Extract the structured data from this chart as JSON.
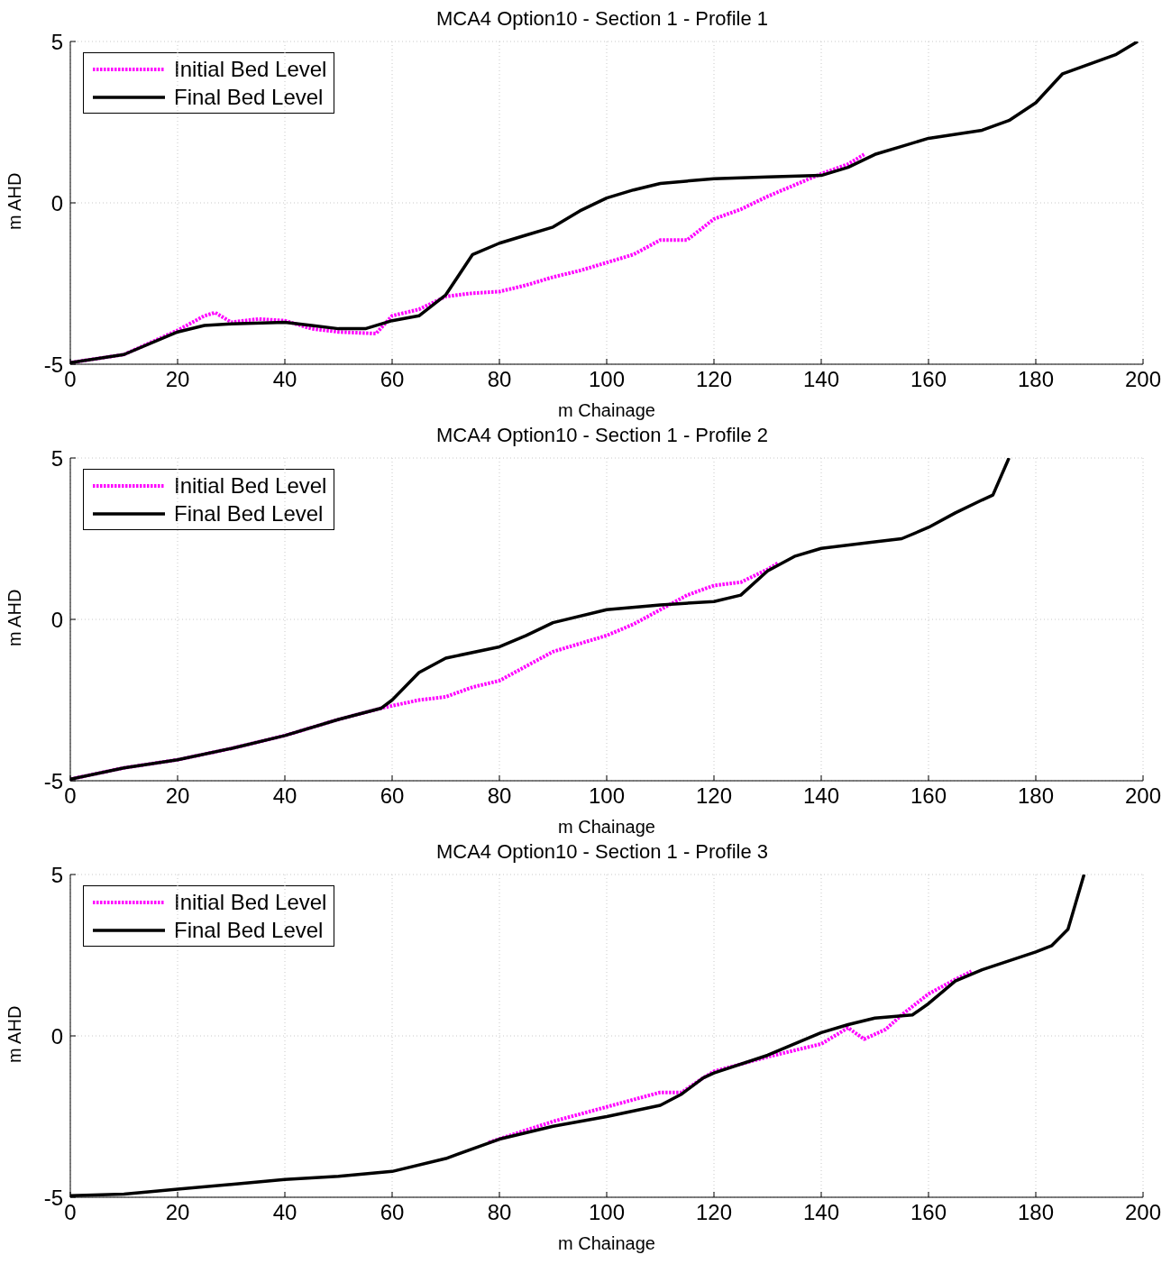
{
  "chart_data": [
    {
      "type": "line",
      "title": "MCA4 Option10 - Section 1 - Profile 1",
      "xlabel": "m Chainage",
      "ylabel": "m AHD",
      "xlim": [
        0,
        200
      ],
      "xticks": [
        0,
        20,
        40,
        60,
        80,
        100,
        120,
        140,
        160,
        180,
        200
      ],
      "ylim": [
        -5,
        5
      ],
      "yticks": [
        -5,
        0,
        5
      ],
      "grid": true,
      "legend": "top left",
      "series": [
        {
          "name": "Initial Bed Level",
          "color": "#ff00ff",
          "line_style": "dotted",
          "x": [
            0,
            10,
            20,
            25,
            27,
            30,
            35,
            40,
            45,
            50,
            57,
            60,
            65,
            70,
            75,
            80,
            85,
            90,
            95,
            100,
            105,
            110,
            115,
            120,
            125,
            130,
            135,
            140,
            145,
            148
          ],
          "values": [
            -4.95,
            -4.7,
            -3.95,
            -3.5,
            -3.4,
            -3.7,
            -3.6,
            -3.65,
            -3.9,
            -4.0,
            -4.05,
            -3.5,
            -3.3,
            -2.9,
            -2.8,
            -2.75,
            -2.55,
            -2.3,
            -2.1,
            -1.85,
            -1.6,
            -1.15,
            -1.15,
            -0.5,
            -0.2,
            0.2,
            0.55,
            0.9,
            1.2,
            1.5
          ]
        },
        {
          "name": "Final Bed Level",
          "color": "#000000",
          "line_style": "solid",
          "x": [
            0,
            10,
            20,
            25,
            30,
            40,
            45,
            50,
            55,
            60,
            65,
            70,
            75,
            80,
            85,
            90,
            95,
            100,
            105,
            110,
            120,
            130,
            140,
            145,
            150,
            155,
            160,
            170,
            175,
            180,
            185,
            190,
            195,
            199
          ],
          "values": [
            -4.95,
            -4.7,
            -4.0,
            -3.8,
            -3.75,
            -3.7,
            -3.8,
            -3.9,
            -3.9,
            -3.65,
            -3.5,
            -2.85,
            -1.6,
            -1.25,
            -1.0,
            -0.75,
            -0.25,
            0.15,
            0.4,
            0.6,
            0.75,
            0.8,
            0.85,
            1.1,
            1.5,
            1.75,
            2.0,
            2.25,
            2.55,
            3.1,
            4.0,
            4.3,
            4.6,
            5.0
          ]
        }
      ]
    },
    {
      "type": "line",
      "title": "MCA4 Option10 - Section 1 - Profile 2",
      "xlabel": "m Chainage",
      "ylabel": "m AHD",
      "xlim": [
        0,
        200
      ],
      "xticks": [
        0,
        20,
        40,
        60,
        80,
        100,
        120,
        140,
        160,
        180,
        200
      ],
      "ylim": [
        -5,
        5
      ],
      "yticks": [
        -5,
        0,
        5
      ],
      "grid": true,
      "legend": "top left",
      "series": [
        {
          "name": "Initial Bed Level",
          "color": "#ff00ff",
          "line_style": "dotted",
          "x": [
            0,
            10,
            20,
            30,
            40,
            50,
            58,
            65,
            70,
            75,
            80,
            85,
            90,
            95,
            100,
            105,
            110,
            115,
            120,
            125,
            130,
            132
          ],
          "values": [
            -4.95,
            -4.6,
            -4.35,
            -4.0,
            -3.6,
            -3.1,
            -2.75,
            -2.5,
            -2.4,
            -2.1,
            -1.9,
            -1.45,
            -1.0,
            -0.75,
            -0.5,
            -0.15,
            0.3,
            0.75,
            1.05,
            1.15,
            1.55,
            1.75
          ]
        },
        {
          "name": "Final Bed Level",
          "color": "#000000",
          "line_style": "solid",
          "x": [
            0,
            10,
            20,
            30,
            40,
            50,
            58,
            60,
            65,
            70,
            80,
            85,
            90,
            100,
            110,
            120,
            125,
            130,
            135,
            140,
            150,
            155,
            160,
            165,
            170,
            172,
            175
          ],
          "values": [
            -4.95,
            -4.6,
            -4.35,
            -4.0,
            -3.6,
            -3.1,
            -2.75,
            -2.5,
            -1.65,
            -1.2,
            -0.85,
            -0.5,
            -0.1,
            0.3,
            0.45,
            0.55,
            0.75,
            1.5,
            1.95,
            2.2,
            2.4,
            2.5,
            2.85,
            3.3,
            3.7,
            3.85,
            5.0
          ]
        }
      ]
    },
    {
      "type": "line",
      "title": "MCA4 Option10 - Section 1 - Profile 3",
      "xlabel": "m Chainage",
      "ylabel": "m AHD",
      "xlim": [
        0,
        200
      ],
      "xticks": [
        0,
        20,
        40,
        60,
        80,
        100,
        120,
        140,
        160,
        180,
        200
      ],
      "ylim": [
        -5,
        5
      ],
      "yticks": [
        -5,
        0,
        5
      ],
      "grid": true,
      "legend": "top left",
      "series": [
        {
          "name": "Initial Bed Level",
          "color": "#ff00ff",
          "line_style": "dotted",
          "x": [
            78,
            90,
            100,
            110,
            114,
            118,
            120,
            130,
            140,
            145,
            148,
            152,
            155,
            160,
            165,
            168
          ],
          "values": [
            -3.3,
            -2.65,
            -2.2,
            -1.75,
            -1.75,
            -1.3,
            -1.1,
            -0.65,
            -0.25,
            0.25,
            -0.1,
            0.2,
            0.65,
            1.3,
            1.75,
            2.0
          ]
        },
        {
          "name": "Final Bed Level",
          "color": "#000000",
          "line_style": "solid",
          "x": [
            0,
            10,
            20,
            30,
            40,
            50,
            60,
            70,
            80,
            90,
            100,
            110,
            114,
            118,
            120,
            130,
            135,
            140,
            145,
            150,
            157,
            160,
            165,
            170,
            180,
            183,
            186,
            189
          ],
          "values": [
            -4.95,
            -4.9,
            -4.75,
            -4.6,
            -4.45,
            -4.35,
            -4.2,
            -3.8,
            -3.2,
            -2.8,
            -2.5,
            -2.15,
            -1.8,
            -1.3,
            -1.15,
            -0.6,
            -0.25,
            0.1,
            0.35,
            0.55,
            0.65,
            1.0,
            1.7,
            2.05,
            2.6,
            2.8,
            3.3,
            5.0
          ]
        }
      ]
    }
  ]
}
